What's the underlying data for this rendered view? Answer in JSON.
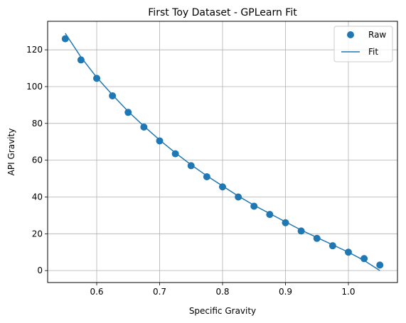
{
  "chart_data": {
    "type": "scatter",
    "title": "First Toy Dataset - GPLearn Fit",
    "xlabel": "Specific Gravity",
    "ylabel": "API Gravity",
    "xlim": [
      0.522,
      1.078
    ],
    "ylim": [
      -6.5,
      135.5
    ],
    "xticks": [
      0.6,
      0.7,
      0.8,
      0.9,
      1.0
    ],
    "xtick_labels": [
      "0.6",
      "0.7",
      "0.8",
      "0.9",
      "1.0"
    ],
    "yticks": [
      0,
      20,
      40,
      60,
      80,
      100,
      120
    ],
    "ytick_labels": [
      "0",
      "20",
      "40",
      "60",
      "80",
      "100",
      "120"
    ],
    "grid": true,
    "legend_position": "top-right",
    "colors": {
      "series": "#1f77b4",
      "grid": "#b0b0b0"
    },
    "series": [
      {
        "name": "Raw",
        "kind": "scatter",
        "x": [
          0.55,
          0.575,
          0.6,
          0.625,
          0.65,
          0.675,
          0.7,
          0.725,
          0.75,
          0.775,
          0.8,
          0.825,
          0.85,
          0.875,
          0.9,
          0.925,
          0.95,
          0.975,
          1.0,
          1.025,
          1.05
        ],
        "y": [
          126,
          114.5,
          104.5,
          95,
          86,
          78,
          70.5,
          63.5,
          57,
          51,
          45.5,
          40,
          35,
          30.5,
          26,
          21.5,
          17.5,
          13.5,
          10,
          6.5,
          3
        ]
      },
      {
        "name": "Fit",
        "kind": "line",
        "x": [
          0.55,
          0.575,
          0.6,
          0.625,
          0.65,
          0.675,
          0.7,
          0.725,
          0.75,
          0.775,
          0.8,
          0.825,
          0.85,
          0.875,
          0.9,
          0.925,
          0.95,
          0.975,
          1.0,
          1.025,
          1.05
        ],
        "y": [
          129,
          116,
          105,
          95.5,
          86.5,
          78.5,
          71,
          64,
          57.5,
          51.5,
          46,
          40.5,
          35.5,
          31,
          26.5,
          22,
          18,
          14,
          10,
          5.5,
          0
        ]
      }
    ]
  }
}
